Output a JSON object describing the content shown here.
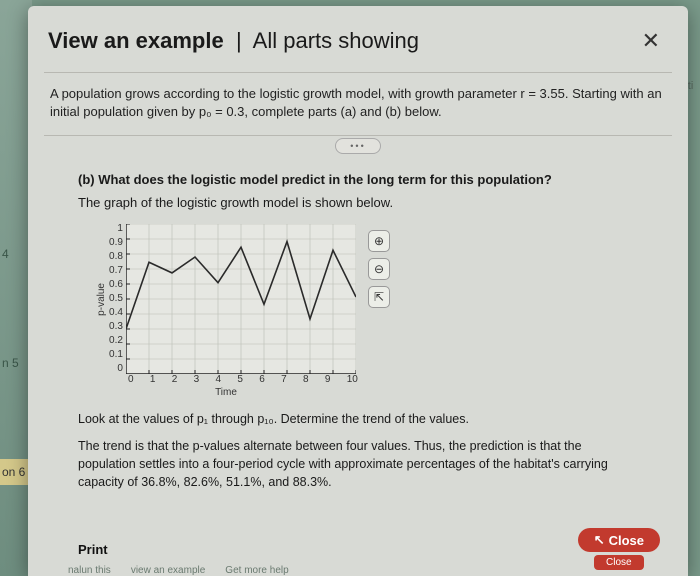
{
  "background": {
    "sidebar_items": [
      "4",
      "n 5",
      "on 6"
    ],
    "right_text": "arti",
    "cutoff": [
      "nalun this",
      "view an example",
      "Get more help"
    ]
  },
  "modal": {
    "title_bold": "View an example",
    "title_sep": "|",
    "title_rest": "All parts showing",
    "close_label": "✕"
  },
  "problem": {
    "intro": "A population grows according to the logistic growth model, with growth parameter r = 3.55. Starting with an initial population given by p₀ = 0.3, complete parts (a) and (b) below.",
    "ellipsis": "•••"
  },
  "part_b": {
    "question": "(b) What does the logistic model predict in the long term for this population?",
    "lead": "The graph of the logistic growth model is shown below."
  },
  "chart": {
    "type": "line",
    "ylabel": "p-value",
    "xlabel": "Time",
    "xlim": [
      0,
      10
    ],
    "ylim": [
      0,
      1
    ],
    "yticks": [
      "1",
      "0.9",
      "0.8",
      "0.7",
      "0.6",
      "0.5",
      "0.4",
      "0.3",
      "0.2",
      "0.1",
      "0"
    ],
    "xticks": [
      "0",
      "1",
      "2",
      "3",
      "4",
      "5",
      "6",
      "7",
      "8",
      "9",
      "10"
    ],
    "line_color": "#2a2a2a",
    "line_width": 1.6,
    "grid_color": "#b9bdb4",
    "background_color": "#e6e7e2",
    "axis_color": "#222222",
    "points": [
      [
        0,
        0.3
      ],
      [
        1,
        0.745
      ],
      [
        2,
        0.674
      ],
      [
        3,
        0.78
      ],
      [
        4,
        0.609
      ],
      [
        5,
        0.845
      ],
      [
        6,
        0.465
      ],
      [
        7,
        0.883
      ],
      [
        8,
        0.367
      ],
      [
        9,
        0.825
      ],
      [
        10,
        0.513
      ]
    ],
    "tools": [
      {
        "name": "zoom-in-icon",
        "glyph": "⊕"
      },
      {
        "name": "zoom-out-icon",
        "glyph": "⊖"
      },
      {
        "name": "popout-icon",
        "glyph": "⇱"
      }
    ]
  },
  "explain": {
    "line1": "Look at the values of p₁ through p₁₀. Determine the trend of the values.",
    "line2": "The trend is that the p-values alternate between four values. Thus, the prediction is that the population settles into a four-period cycle with approximate percentages of the habitat's carrying capacity of 36.8%, 82.6%, 51.1%, and 88.3%."
  },
  "footer": {
    "print": "Print",
    "close_big": "Close",
    "close_small": "Close"
  }
}
